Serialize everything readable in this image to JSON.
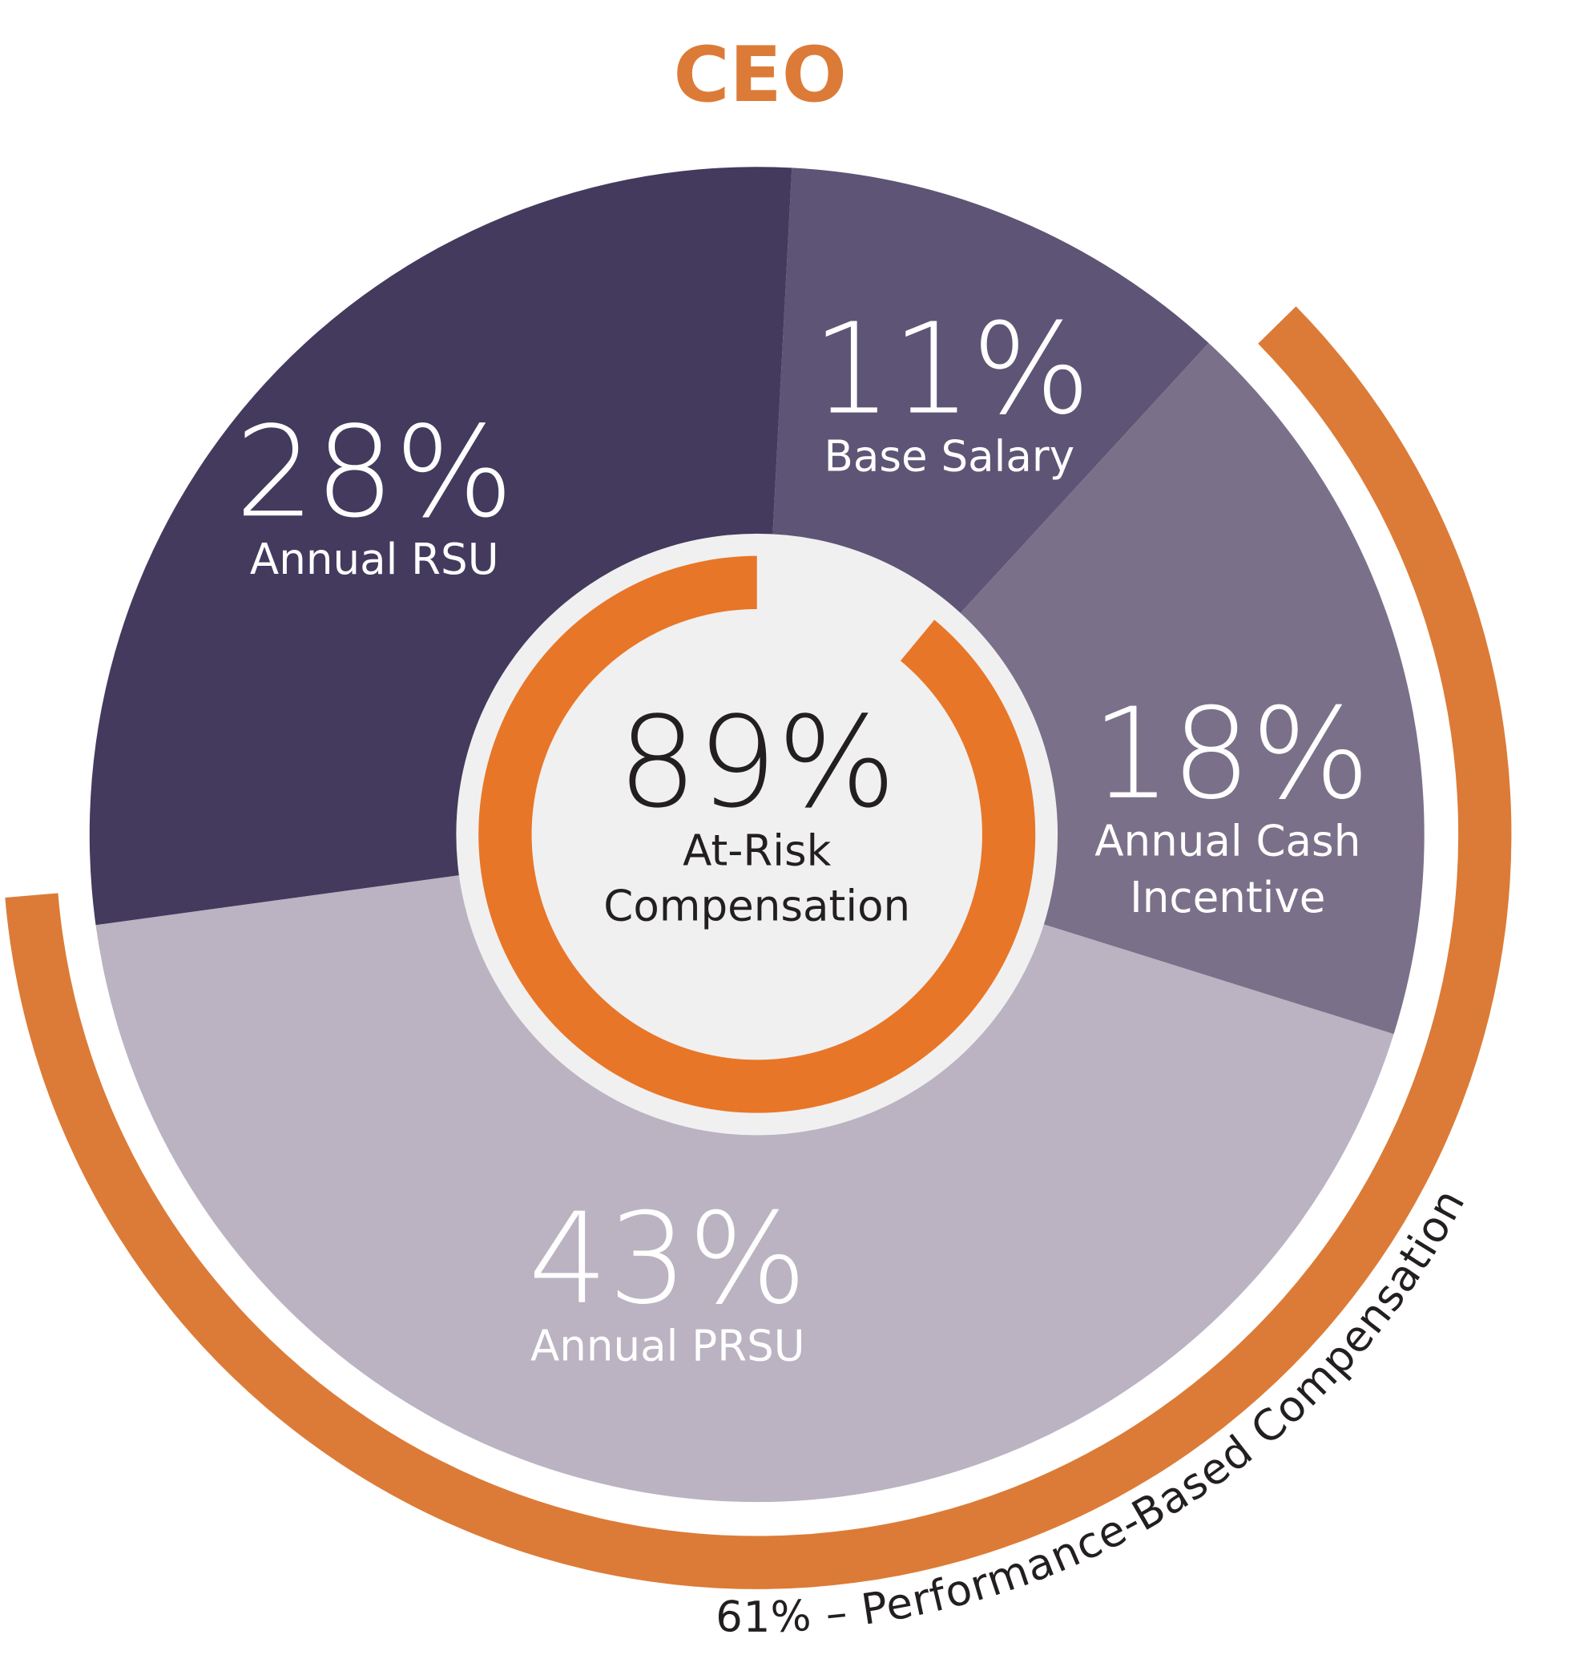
{
  "chart_data": {
    "type": "pie",
    "title": "CEO",
    "slices": [
      {
        "label": "Base Salary",
        "value": 11,
        "value_label": "11%",
        "color": "#5e5475"
      },
      {
        "label": "Annual Cash",
        "label_line2": "Incentive",
        "value": 18,
        "value_label": "18%",
        "color": "#7b7089"
      },
      {
        "label": "Annual PRSU",
        "value": 43,
        "value_label": "43%",
        "color": "#bbb2c2"
      },
      {
        "label": "Annual RSU",
        "value": 28,
        "value_label": "28%",
        "color": "#433a5e"
      }
    ],
    "center": {
      "value": 89,
      "value_label": "89%",
      "label_line1": "At-Risk",
      "label_line2": "Compensation",
      "ring_color": "#e87628",
      "background": "#f0f0f0"
    },
    "outer_arc": {
      "value": 61,
      "label": "61% – Performance-Based  Compensation",
      "color": "#dc7b37"
    },
    "title_color": "#dc7b37"
  }
}
